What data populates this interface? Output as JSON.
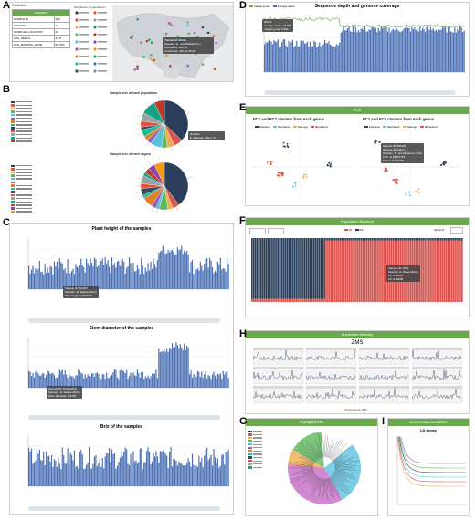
{
  "panels": {
    "A": "A",
    "B": "B",
    "C": "C",
    "D": "D",
    "E": "E",
    "F": "F",
    "G": "G",
    "H": "H",
    "I": "I"
  },
  "A": {
    "stats_title": "Statistics",
    "summary_header": "SUMMARY",
    "rows": [
      {
        "k": "SAMPLE ID",
        "v": "300"
      },
      {
        "k": "SPECIES",
        "v": "14"
      },
      {
        "k": "SAMPLING LOCATION",
        "v": "22"
      },
      {
        "k": "AVG_DEPTH",
        "v": "24.3*"
      },
      {
        "k": "AVG_MAPPING_RATE",
        "v": "96.75%"
      }
    ],
    "map_legend_title": "Distribution of populations",
    "map_tooltip": [
      "Yunnan in China",
      "Species : E. sessilifolia(Arch.)",
      "Sample ID: BM109",
      "Coordinate: 110.01,25.00"
    ]
  },
  "B": {
    "pie1_title": "Sample size of each population",
    "pie2_title": "Sample size of each region",
    "pie1_tooltip": [
      "Number",
      "E. fukianae (Rice): 37"
    ]
  },
  "C": {
    "titles": [
      "Plant height of the samples",
      "Stem diameter of the samples",
      "Brix of the samples"
    ],
    "axis_unit": "Species",
    "tip1": [
      "Sample ID: SH454",
      "Species : E. lutiana (Rice)",
      "Plant height: 175.5CM"
    ],
    "tip2": [
      "Sample ID: M12SH450",
      "Species : E. lutiana (Rice)",
      "Stem diameter: 0.9784"
    ]
  },
  "D": {
    "title": "Sequence depth and genome coverage",
    "legend": [
      "mapping rate",
      "average depth"
    ],
    "tooltip": [
      "DM74",
      "average depth: 18.557",
      "mapping rate: 0.991"
    ]
  },
  "E": {
    "header": "PCA",
    "title1": "PC1 and PC2 clusters from each genus",
    "title2": "PC1 and PC3 clusters from each genus",
    "legend": [
      "Erianthus",
      "Saccharum",
      "Narenga",
      "Miscanthus"
    ],
    "tooltip": [
      "Sample ID: BM495",
      "Genera: Erianthus",
      "Species : E. arundinaceum (Ant)",
      "PC1: -0.09757719",
      "PC3: 0.11002406"
    ]
  },
  "F": {
    "header": "Population Structure",
    "legend": [
      "K1",
      "K2"
    ],
    "select_k": "Select K:",
    "tooltip": [
      "Sample ID: DM5",
      "Species: E. Rowe (Rice)",
      "K1: 0.00001",
      "K2: 0.99999"
    ]
  },
  "G": {
    "header": "Phylogeny tree"
  },
  "H": {
    "header": "Nucleotide diversity",
    "title": "ZMS",
    "xlabel": "Chromosome (Mb)"
  },
  "I": {
    "header": "Decay of linkage disequilibrium",
    "title": "LD decay"
  },
  "colors": {
    "bar": "#4a6fb5",
    "green": "#6aa84f",
    "red": "#d9534f",
    "navy": "#2b3f5c"
  }
}
